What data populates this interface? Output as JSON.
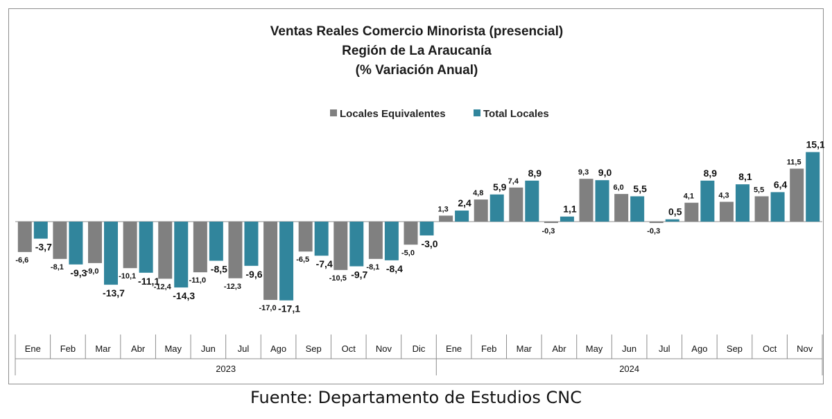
{
  "title_lines": [
    "Ventas Reales Comercio Minorista (presencial)",
    "Región de La Araucanía",
    "(% Variación Anual)"
  ],
  "source": "Fuente: Departamento de Estudios CNC",
  "colors": {
    "equivalentes": "#808080",
    "total": "#31859c",
    "axis": "#8c8c8c"
  },
  "chart_data": {
    "type": "bar",
    "title": "Ventas Reales Comercio Minorista (presencial) Región de La Araucanía (% Variación Anual)",
    "legend_position": "top-center",
    "grid": false,
    "ylim": [
      -20,
      17
    ],
    "categories": [
      "Ene",
      "Feb",
      "Mar",
      "Abr",
      "May",
      "Jun",
      "Jul",
      "Ago",
      "Sep",
      "Oct",
      "Nov",
      "Dic",
      "Ene",
      "Feb",
      "Mar",
      "Abr",
      "May",
      "Jun",
      "Jul",
      "Ago",
      "Sep",
      "Oct",
      "Nov"
    ],
    "groups": [
      {
        "label": "2023",
        "count": 12
      },
      {
        "label": "2024",
        "count": 11
      }
    ],
    "series": [
      {
        "name": "Locales Equivalentes",
        "values": [
          -6.6,
          -8.1,
          -9.0,
          -10.1,
          -12.4,
          -11.0,
          -12.3,
          -17.0,
          -6.5,
          -10.5,
          -8.1,
          -5.0,
          1.3,
          4.8,
          7.4,
          -0.3,
          9.3,
          6.0,
          -0.3,
          4.1,
          4.3,
          5.5,
          11.5
        ],
        "labels": [
          "-6,6",
          "-8,1",
          "-9,0",
          "-10,1",
          "-12,4",
          "-11,0",
          "-12,3",
          "-17,0",
          "-6,5",
          "-10,5",
          "-8,1",
          "-5,0",
          "1,3",
          "4,8",
          "7,4",
          "-0,3",
          "9,3",
          "6,0",
          "-0,3",
          "4,1",
          "4,3",
          "5,5",
          "11,5"
        ]
      },
      {
        "name": "Total Locales",
        "values": [
          -3.7,
          -9.3,
          -13.7,
          -11.1,
          -14.3,
          -8.5,
          -9.6,
          -17.1,
          -7.4,
          -9.7,
          -8.4,
          -3.0,
          2.4,
          5.9,
          8.9,
          1.1,
          9.0,
          5.5,
          0.5,
          8.9,
          8.1,
          6.4,
          15.1
        ],
        "labels": [
          "-3,7",
          "-9,3",
          "-13,7",
          "-11,1",
          "-14,3",
          "-8,5",
          "-9,6",
          "-17,1",
          "-7,4",
          "-9,7",
          "-8,4",
          "-3,0",
          "2,4",
          "5,9",
          "8,9",
          "1,1",
          "9,0",
          "5,5",
          "0,5",
          "8,9",
          "8,1",
          "6,4",
          "15,1"
        ]
      }
    ]
  }
}
